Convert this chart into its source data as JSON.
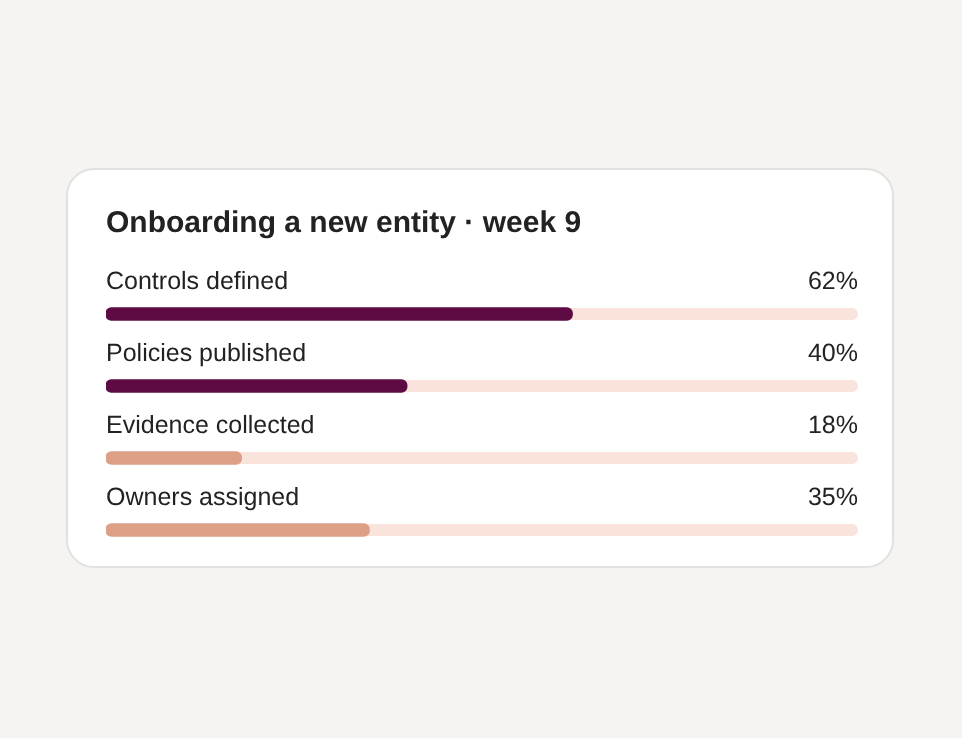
{
  "chart_data": {
    "type": "bar",
    "orientation": "horizontal",
    "title": "Onboarding a new entity · week 9",
    "categories": [
      "Controls defined",
      "Policies published",
      "Evidence collected",
      "Owners assigned"
    ],
    "values": [
      62,
      40,
      18,
      35
    ],
    "colors": [
      "#5e0b43",
      "#5e0b43",
      "#dd9f86",
      "#dd9f86"
    ],
    "value_labels": [
      "62%",
      "40%",
      "18%",
      "35%"
    ],
    "xlim": [
      0,
      100
    ],
    "tick_labels": false
  }
}
